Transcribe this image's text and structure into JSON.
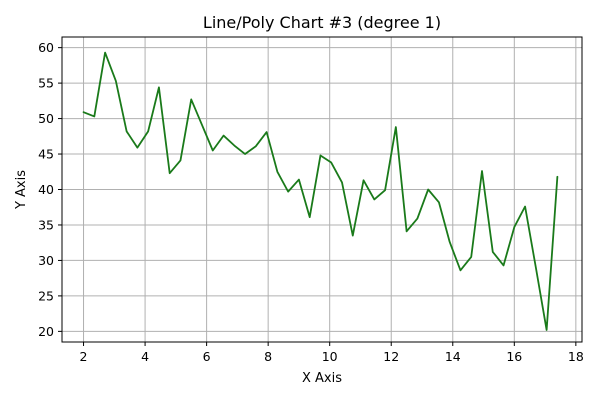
{
  "chart_data": {
    "type": "line",
    "title": "Line/Poly Chart #3 (degree 1)",
    "xlabel": "X Axis",
    "ylabel": "Y Axis",
    "xlim": [
      1.3,
      18.2
    ],
    "ylim": [
      18.5,
      61.5
    ],
    "xticks": [
      2,
      4,
      6,
      8,
      10,
      12,
      14,
      16,
      18
    ],
    "yticks": [
      20,
      25,
      30,
      35,
      40,
      45,
      50,
      55,
      60
    ],
    "grid": true,
    "series": [
      {
        "color": "#1a7a1a",
        "x": [
          2.0,
          2.35,
          2.7,
          3.05,
          3.4,
          3.75,
          4.1,
          4.45,
          4.8,
          5.15,
          5.5,
          5.85,
          6.2,
          6.55,
          6.9,
          7.25,
          7.6,
          7.95,
          8.3,
          8.65,
          9.0,
          9.35,
          9.7,
          10.05,
          10.4,
          10.75,
          11.1,
          11.45,
          11.8,
          12.15,
          12.5,
          12.85,
          13.2,
          13.55,
          13.9,
          14.25,
          14.6,
          14.95,
          15.3,
          15.65,
          16.0,
          16.35,
          16.7,
          17.05,
          17.4
        ],
        "y": [
          50.9,
          50.3,
          59.3,
          55.3,
          48.2,
          45.9,
          48.2,
          54.4,
          42.3,
          44.1,
          52.7,
          49.1,
          45.5,
          47.6,
          46.2,
          45.0,
          46.1,
          48.1,
          42.5,
          39.7,
          41.4,
          36.1,
          44.8,
          43.8,
          41.0,
          33.5,
          41.3,
          38.6,
          39.9,
          48.8,
          34.1,
          35.9,
          40.0,
          38.2,
          32.6,
          28.6,
          30.5,
          42.6,
          31.2,
          29.3,
          34.7,
          37.6,
          29.0,
          20.2,
          41.8
        ]
      }
    ]
  }
}
